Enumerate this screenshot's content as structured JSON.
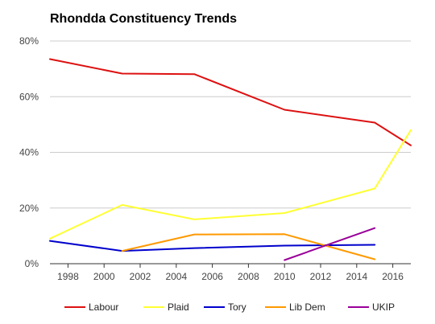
{
  "chart_data": {
    "type": "line",
    "title": "Rhondda Constituency Trends",
    "xlabel": "",
    "ylabel": "",
    "xlim": [
      1997,
      2017
    ],
    "ylim": [
      0,
      80
    ],
    "x_ticks": [
      "1998",
      "2000",
      "2002",
      "2004",
      "2006",
      "2008",
      "2010",
      "2012",
      "2014",
      "2016"
    ],
    "y_ticks": [
      "0%",
      "20%",
      "40%",
      "60%",
      "80%"
    ],
    "grid": true,
    "legend_position": "bottom",
    "series": [
      {
        "name": "Labour",
        "color": "#dd1111",
        "x": [
          1997,
          2001,
          2005,
          2010,
          2015,
          2017
        ],
        "y": [
          73.5,
          68.3,
          68.1,
          55.3,
          50.7,
          42.5
        ]
      },
      {
        "name": "Plaid",
        "color": "#ffff33",
        "x": [
          1997,
          2001,
          2005,
          2010,
          2015,
          2017
        ],
        "y": [
          9.0,
          21.1,
          15.9,
          18.2,
          27.0,
          48.0
        ]
      },
      {
        "name": "Tory",
        "color": "#0000cc",
        "x": [
          1997,
          2001,
          2005,
          2010,
          2015
        ],
        "y": [
          8.2,
          4.6,
          5.6,
          6.5,
          6.8
        ]
      },
      {
        "name": "Lib Dem",
        "color": "#ff9900",
        "x": [
          2001,
          2005,
          2010,
          2015
        ],
        "y": [
          4.6,
          10.5,
          10.6,
          1.6
        ]
      },
      {
        "name": "UKIP",
        "color": "#990099",
        "x": [
          2010,
          2015
        ],
        "y": [
          1.3,
          12.8
        ]
      }
    ]
  }
}
